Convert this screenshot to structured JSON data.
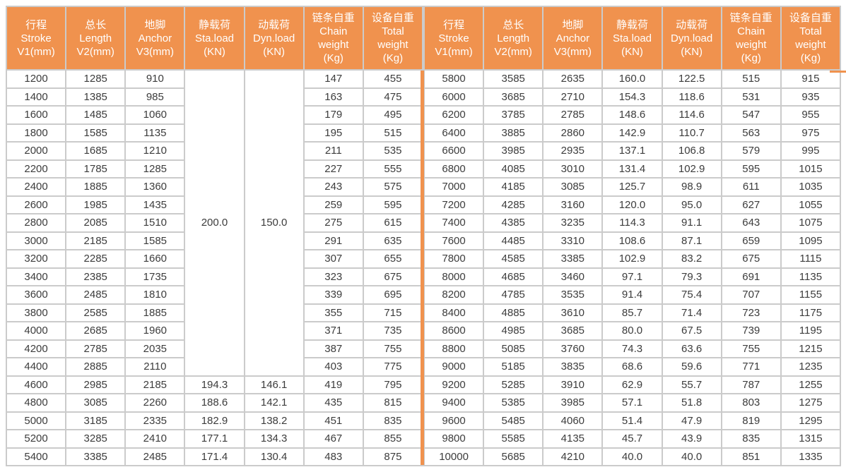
{
  "colors": {
    "header_bg": "#F0924E",
    "header_text": "#FFFFFF",
    "grid": "#CBCBCB",
    "body_text": "#3C3C3C",
    "divider": "#F0924E"
  },
  "header_columns": [
    {
      "key": "stroke",
      "lines": [
        "行程",
        "Stroke",
        "V1(mm)"
      ]
    },
    {
      "key": "length",
      "lines": [
        "总长",
        "Length",
        "V2(mm)"
      ]
    },
    {
      "key": "anchor",
      "lines": [
        "地脚",
        "Anchor",
        "V3(mm)"
      ]
    },
    {
      "key": "sta-load",
      "lines": [
        "静载荷",
        "Sta.load",
        "(KN)"
      ]
    },
    {
      "key": "dyn-load",
      "lines": [
        "动载荷",
        "Dyn.load",
        "(KN)"
      ]
    },
    {
      "key": "chain-weight",
      "lines": [
        "链条自重",
        "Chain",
        "weight",
        "(Kg)"
      ]
    },
    {
      "key": "total-weight",
      "lines": [
        "设备自重",
        "Total",
        "weight",
        "(Kg)"
      ]
    }
  ],
  "left_table": {
    "merged": {
      "insert_at": 3,
      "row_count": 17,
      "values": [
        "200.0",
        "150.0"
      ]
    },
    "rows": [
      [
        "1200",
        "1285",
        "910",
        "147",
        "455"
      ],
      [
        "1400",
        "1385",
        "985",
        "163",
        "475"
      ],
      [
        "1600",
        "1485",
        "1060",
        "179",
        "495"
      ],
      [
        "1800",
        "1585",
        "1135",
        "195",
        "515"
      ],
      [
        "2000",
        "1685",
        "1210",
        "211",
        "535"
      ],
      [
        "2200",
        "1785",
        "1285",
        "227",
        "555"
      ],
      [
        "2400",
        "1885",
        "1360",
        "243",
        "575"
      ],
      [
        "2600",
        "1985",
        "1435",
        "259",
        "595"
      ],
      [
        "2800",
        "2085",
        "1510",
        "275",
        "615"
      ],
      [
        "3000",
        "2185",
        "1585",
        "291",
        "635"
      ],
      [
        "3200",
        "2285",
        "1660",
        "307",
        "655"
      ],
      [
        "3400",
        "2385",
        "1735",
        "323",
        "675"
      ],
      [
        "3600",
        "2485",
        "1810",
        "339",
        "695"
      ],
      [
        "3800",
        "2585",
        "1885",
        "355",
        "715"
      ],
      [
        "4000",
        "2685",
        "1960",
        "371",
        "735"
      ],
      [
        "4200",
        "2785",
        "2035",
        "387",
        "755"
      ],
      [
        "4400",
        "2885",
        "2110",
        "403",
        "775"
      ],
      [
        "4600",
        "2985",
        "2185",
        "194.3",
        "146.1",
        "419",
        "795"
      ],
      [
        "4800",
        "3085",
        "2260",
        "188.6",
        "142.1",
        "435",
        "815"
      ],
      [
        "5000",
        "3185",
        "2335",
        "182.9",
        "138.2",
        "451",
        "835"
      ],
      [
        "5200",
        "3285",
        "2410",
        "177.1",
        "134.3",
        "467",
        "855"
      ],
      [
        "5400",
        "3385",
        "2485",
        "171.4",
        "130.4",
        "483",
        "875"
      ]
    ]
  },
  "right_table": {
    "rows": [
      [
        "5800",
        "3585",
        "2635",
        "160.0",
        "122.5",
        "515",
        "915"
      ],
      [
        "6000",
        "3685",
        "2710",
        "154.3",
        "118.6",
        "531",
        "935"
      ],
      [
        "6200",
        "3785",
        "2785",
        "148.6",
        "114.6",
        "547",
        "955"
      ],
      [
        "6400",
        "3885",
        "2860",
        "142.9",
        "110.7",
        "563",
        "975"
      ],
      [
        "6600",
        "3985",
        "2935",
        "137.1",
        "106.8",
        "579",
        "995"
      ],
      [
        "6800",
        "4085",
        "3010",
        "131.4",
        "102.9",
        "595",
        "1015"
      ],
      [
        "7000",
        "4185",
        "3085",
        "125.7",
        "98.9",
        "611",
        "1035"
      ],
      [
        "7200",
        "4285",
        "3160",
        "120.0",
        "95.0",
        "627",
        "1055"
      ],
      [
        "7400",
        "4385",
        "3235",
        "114.3",
        "91.1",
        "643",
        "1075"
      ],
      [
        "7600",
        "4485",
        "3310",
        "108.6",
        "87.1",
        "659",
        "1095"
      ],
      [
        "7800",
        "4585",
        "3385",
        "102.9",
        "83.2",
        "675",
        "1115"
      ],
      [
        "8000",
        "4685",
        "3460",
        "97.1",
        "79.3",
        "691",
        "1135"
      ],
      [
        "8200",
        "4785",
        "3535",
        "91.4",
        "75.4",
        "707",
        "1155"
      ],
      [
        "8400",
        "4885",
        "3610",
        "85.7",
        "71.4",
        "723",
        "1175"
      ],
      [
        "8600",
        "4985",
        "3685",
        "80.0",
        "67.5",
        "739",
        "1195"
      ],
      [
        "8800",
        "5085",
        "3760",
        "74.3",
        "63.6",
        "755",
        "1215"
      ],
      [
        "9000",
        "5185",
        "3835",
        "68.6",
        "59.6",
        "771",
        "1235"
      ],
      [
        "9200",
        "5285",
        "3910",
        "62.9",
        "55.7",
        "787",
        "1255"
      ],
      [
        "9400",
        "5385",
        "3985",
        "57.1",
        "51.8",
        "803",
        "1275"
      ],
      [
        "9600",
        "5485",
        "4060",
        "51.4",
        "47.9",
        "819",
        "1295"
      ],
      [
        "9800",
        "5585",
        "4135",
        "45.7",
        "43.9",
        "835",
        "1315"
      ],
      [
        "10000",
        "5685",
        "4210",
        "40.0",
        "40.0",
        "851",
        "1335"
      ]
    ]
  }
}
